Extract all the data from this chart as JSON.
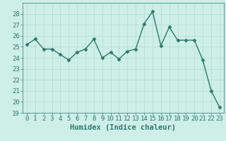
{
  "x": [
    0,
    1,
    2,
    3,
    4,
    5,
    6,
    7,
    8,
    9,
    10,
    11,
    12,
    13,
    14,
    15,
    16,
    17,
    18,
    19,
    20,
    21,
    22,
    23
  ],
  "y": [
    25.2,
    25.7,
    24.8,
    24.8,
    24.3,
    23.8,
    24.5,
    24.8,
    25.7,
    24.0,
    24.5,
    23.9,
    24.6,
    24.8,
    27.1,
    28.2,
    25.1,
    26.8,
    25.6,
    25.6,
    25.6,
    23.8,
    21.0,
    19.5
  ],
  "line_color": "#2a7a6b",
  "marker": "D",
  "marker_size": 2.5,
  "line_width": 1.0,
  "xlabel": "Humidex (Indice chaleur)",
  "xlim": [
    -0.5,
    23.5
  ],
  "ylim": [
    19,
    29
  ],
  "yticks": [
    19,
    20,
    21,
    22,
    23,
    24,
    25,
    26,
    27,
    28
  ],
  "xtick_labels": [
    "0",
    "1",
    "2",
    "3",
    "4",
    "5",
    "6",
    "7",
    "8",
    "9",
    "10",
    "11",
    "12",
    "13",
    "14",
    "15",
    "16",
    "17",
    "18",
    "19",
    "20",
    "21",
    "22",
    "23"
  ],
  "bg_color": "#ceeee8",
  "grid_color": "#b8d8d2",
  "xlabel_fontsize": 7.5,
  "tick_fontsize": 6.5
}
